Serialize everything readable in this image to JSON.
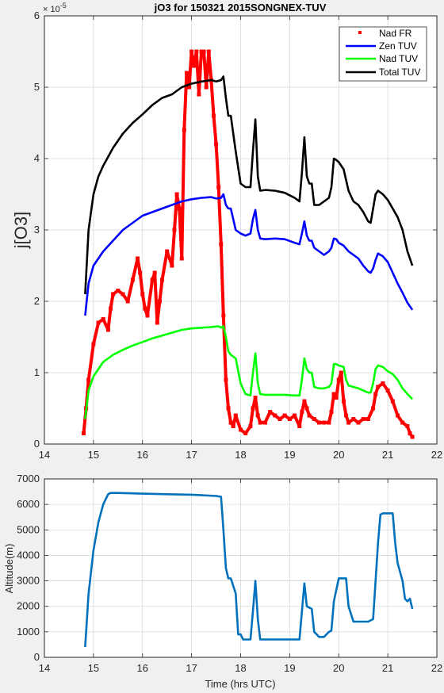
{
  "chart_data": [
    {
      "type": "line",
      "title": "jO3 for 150321 2015SONGNEX-TUV",
      "xlabel": "",
      "ylabel": "j[O3]",
      "y_exponent_label": "× 10",
      "y_exponent_power": "-5",
      "xlim": [
        14,
        22
      ],
      "ylim": [
        0,
        6
      ],
      "xticks": [
        "14",
        "15",
        "16",
        "17",
        "18",
        "19",
        "20",
        "21",
        "22"
      ],
      "yticks": [
        "0",
        "1",
        "2",
        "3",
        "4",
        "5",
        "6"
      ],
      "grid": true,
      "legend_position": "top-right",
      "series": [
        {
          "name": "Nad FR",
          "style": "markers",
          "color": "#ff0000",
          "x": [
            14.8,
            14.85,
            14.9,
            15.0,
            15.1,
            15.2,
            15.3,
            15.35,
            15.4,
            15.5,
            15.6,
            15.7,
            15.8,
            15.9,
            15.95,
            16.0,
            16.05,
            16.1,
            16.2,
            16.25,
            16.3,
            16.35,
            16.4,
            16.5,
            16.6,
            16.65,
            16.7,
            16.75,
            16.8,
            16.85,
            16.9,
            16.95,
            17.0,
            17.05,
            17.1,
            17.15,
            17.2,
            17.25,
            17.3,
            17.35,
            17.4,
            17.45,
            17.5,
            17.55,
            17.6,
            17.65,
            17.7,
            17.75,
            17.8,
            17.85,
            17.9,
            18.0,
            18.1,
            18.2,
            18.25,
            18.3,
            18.35,
            18.4,
            18.5,
            18.6,
            18.7,
            18.8,
            18.9,
            19.0,
            19.1,
            19.2,
            19.25,
            19.3,
            19.35,
            19.4,
            19.5,
            19.6,
            19.7,
            19.8,
            19.85,
            19.9,
            19.95,
            20.0,
            20.05,
            20.1,
            20.15,
            20.2,
            20.3,
            20.4,
            20.5,
            20.6,
            20.7,
            20.75,
            20.8,
            20.9,
            21.0,
            21.1,
            21.2,
            21.3,
            21.4,
            21.45,
            21.5
          ],
          "y": [
            0.15,
            0.5,
            0.9,
            1.4,
            1.7,
            1.75,
            1.6,
            1.9,
            2.1,
            2.15,
            2.1,
            2.0,
            2.3,
            2.6,
            2.4,
            2.1,
            1.9,
            1.8,
            2.3,
            2.4,
            1.7,
            2.0,
            2.3,
            2.7,
            2.5,
            3.0,
            3.5,
            3.3,
            2.6,
            4.4,
            5.2,
            5.0,
            5.5,
            5.3,
            5.5,
            4.9,
            5.5,
            5.5,
            5.0,
            5.5,
            5.1,
            4.6,
            4.2,
            3.6,
            2.8,
            1.8,
            0.9,
            0.5,
            0.3,
            0.25,
            0.4,
            0.2,
            0.15,
            0.25,
            0.5,
            0.65,
            0.4,
            0.3,
            0.3,
            0.45,
            0.4,
            0.35,
            0.4,
            0.35,
            0.4,
            0.25,
            0.45,
            0.6,
            0.5,
            0.4,
            0.35,
            0.3,
            0.3,
            0.3,
            0.45,
            0.7,
            0.65,
            0.9,
            1.0,
            0.6,
            0.4,
            0.3,
            0.35,
            0.3,
            0.35,
            0.35,
            0.5,
            0.7,
            0.8,
            0.85,
            0.75,
            0.6,
            0.4,
            0.3,
            0.25,
            0.15,
            0.1
          ]
        },
        {
          "name": "Zen TUV",
          "style": "line",
          "color": "#0000ff",
          "x": [
            14.83,
            14.9,
            15.0,
            15.1,
            15.2,
            15.4,
            15.6,
            15.8,
            16.0,
            16.2,
            16.4,
            16.6,
            16.8,
            17.0,
            17.2,
            17.4,
            17.5,
            17.6,
            17.65,
            17.7,
            17.75,
            17.8,
            17.9,
            18.0,
            18.1,
            18.2,
            18.25,
            18.3,
            18.35,
            18.4,
            18.5,
            18.7,
            18.9,
            19.1,
            19.2,
            19.25,
            19.3,
            19.35,
            19.4,
            19.45,
            19.5,
            19.6,
            19.7,
            19.8,
            19.85,
            19.9,
            19.95,
            20.0,
            20.1,
            20.2,
            20.3,
            20.4,
            20.5,
            20.6,
            20.65,
            20.7,
            20.75,
            20.8,
            20.9,
            21.0,
            21.1,
            21.2,
            21.3,
            21.4,
            21.5
          ],
          "y": [
            1.8,
            2.25,
            2.5,
            2.6,
            2.7,
            2.85,
            3.0,
            3.1,
            3.2,
            3.25,
            3.3,
            3.35,
            3.4,
            3.43,
            3.45,
            3.46,
            3.44,
            3.45,
            3.5,
            3.35,
            3.3,
            3.3,
            3.0,
            2.95,
            2.92,
            2.95,
            3.15,
            3.28,
            3.0,
            2.88,
            2.87,
            2.88,
            2.87,
            2.82,
            2.8,
            2.95,
            3.12,
            2.92,
            2.85,
            2.85,
            2.75,
            2.7,
            2.65,
            2.7,
            2.75,
            2.88,
            2.87,
            2.82,
            2.78,
            2.7,
            2.65,
            2.6,
            2.5,
            2.42,
            2.4,
            2.46,
            2.58,
            2.67,
            2.63,
            2.55,
            2.4,
            2.25,
            2.12,
            1.98,
            1.88
          ]
        },
        {
          "name": "Nad TUV",
          "style": "line",
          "color": "#00ff00",
          "x": [
            14.83,
            14.9,
            15.0,
            15.1,
            15.2,
            15.4,
            15.6,
            15.8,
            16.0,
            16.2,
            16.4,
            16.6,
            16.8,
            17.0,
            17.2,
            17.4,
            17.55,
            17.6,
            17.65,
            17.7,
            17.75,
            17.8,
            17.9,
            18.0,
            18.1,
            18.2,
            18.25,
            18.3,
            18.35,
            18.4,
            18.5,
            18.7,
            18.9,
            19.1,
            19.2,
            19.25,
            19.3,
            19.35,
            19.4,
            19.45,
            19.5,
            19.6,
            19.7,
            19.8,
            19.85,
            19.9,
            19.95,
            20.0,
            20.1,
            20.15,
            20.2,
            20.3,
            20.4,
            20.5,
            20.6,
            20.65,
            20.7,
            20.75,
            20.8,
            20.9,
            21.0,
            21.1,
            21.2,
            21.3,
            21.4,
            21.5
          ],
          "y": [
            0.35,
            0.75,
            0.95,
            1.05,
            1.15,
            1.25,
            1.32,
            1.38,
            1.43,
            1.48,
            1.52,
            1.56,
            1.6,
            1.62,
            1.63,
            1.64,
            1.65,
            1.63,
            1.65,
            1.5,
            1.3,
            1.25,
            1.2,
            0.85,
            0.7,
            0.68,
            1.0,
            1.27,
            0.85,
            0.7,
            0.69,
            0.69,
            0.69,
            0.68,
            0.68,
            0.9,
            1.2,
            1.05,
            1.0,
            1.0,
            0.8,
            0.78,
            0.78,
            0.8,
            0.85,
            1.12,
            1.12,
            1.1,
            1.08,
            0.9,
            0.82,
            0.8,
            0.78,
            0.75,
            0.72,
            0.72,
            0.85,
            1.05,
            1.1,
            1.08,
            1.02,
            0.98,
            0.9,
            0.78,
            0.7,
            0.63
          ]
        },
        {
          "name": "Total TUV",
          "style": "line",
          "color": "#000000",
          "x": [
            14.83,
            14.9,
            15.0,
            15.1,
            15.2,
            15.4,
            15.6,
            15.8,
            16.0,
            16.2,
            16.4,
            16.6,
            16.8,
            17.0,
            17.2,
            17.4,
            17.5,
            17.6,
            17.65,
            17.7,
            17.75,
            17.8,
            17.9,
            18.0,
            18.1,
            18.2,
            18.25,
            18.3,
            18.35,
            18.4,
            18.5,
            18.7,
            18.9,
            19.1,
            19.2,
            19.25,
            19.3,
            19.35,
            19.4,
            19.45,
            19.5,
            19.6,
            19.7,
            19.8,
            19.85,
            19.9,
            19.95,
            20.0,
            20.1,
            20.2,
            20.3,
            20.4,
            20.5,
            20.6,
            20.65,
            20.7,
            20.75,
            20.8,
            20.9,
            21.0,
            21.1,
            21.2,
            21.3,
            21.4,
            21.5
          ],
          "y": [
            2.1,
            3.0,
            3.5,
            3.75,
            3.9,
            4.15,
            4.35,
            4.5,
            4.62,
            4.75,
            4.85,
            4.9,
            5.0,
            5.05,
            5.08,
            5.1,
            5.08,
            5.1,
            5.15,
            4.85,
            4.6,
            4.6,
            4.1,
            3.65,
            3.6,
            3.6,
            4.1,
            4.55,
            3.75,
            3.55,
            3.56,
            3.55,
            3.52,
            3.45,
            3.4,
            3.8,
            4.3,
            3.75,
            3.65,
            3.65,
            3.35,
            3.35,
            3.4,
            3.45,
            3.6,
            4.0,
            3.98,
            3.95,
            3.85,
            3.55,
            3.4,
            3.35,
            3.25,
            3.12,
            3.1,
            3.3,
            3.5,
            3.55,
            3.5,
            3.42,
            3.3,
            3.18,
            3.0,
            2.7,
            2.5
          ]
        }
      ]
    },
    {
      "type": "line",
      "title": "",
      "xlabel": "Time (hrs UTC)",
      "ylabel": "Altitude(m)",
      "xlim": [
        14,
        22
      ],
      "ylim": [
        0,
        7000
      ],
      "xticks": [
        "14",
        "15",
        "16",
        "17",
        "18",
        "19",
        "20",
        "21",
        "22"
      ],
      "yticks": [
        "0",
        "1000",
        "2000",
        "3000",
        "4000",
        "5000",
        "6000",
        "7000"
      ],
      "grid": true,
      "series": [
        {
          "style": "line",
          "color": "#0072bd",
          "x": [
            14.83,
            14.9,
            15.0,
            15.1,
            15.2,
            15.3,
            15.35,
            15.5,
            16.0,
            16.5,
            17.0,
            17.5,
            17.6,
            17.65,
            17.7,
            17.75,
            17.8,
            17.9,
            17.95,
            18.0,
            18.05,
            18.1,
            18.2,
            18.25,
            18.3,
            18.35,
            18.4,
            18.5,
            18.7,
            18.9,
            19.1,
            19.2,
            19.25,
            19.3,
            19.35,
            19.4,
            19.45,
            19.5,
            19.6,
            19.7,
            19.8,
            19.85,
            19.9,
            20.0,
            20.1,
            20.15,
            20.2,
            20.3,
            20.5,
            20.6,
            20.7,
            20.8,
            20.85,
            20.9,
            21.0,
            21.1,
            21.15,
            21.2,
            21.3,
            21.35,
            21.4,
            21.45,
            21.5
          ],
          "y": [
            400,
            2500,
            4200,
            5300,
            6000,
            6400,
            6450,
            6450,
            6420,
            6400,
            6380,
            6330,
            6300,
            5000,
            3500,
            3100,
            3100,
            2500,
            900,
            900,
            700,
            700,
            700,
            1800,
            3000,
            1500,
            700,
            700,
            700,
            700,
            700,
            700,
            1800,
            2900,
            2000,
            1950,
            1900,
            1000,
            800,
            800,
            1000,
            1050,
            2200,
            3100,
            3100,
            3100,
            2000,
            1400,
            1400,
            1400,
            1500,
            4500,
            5600,
            5650,
            5650,
            5650,
            4500,
            3700,
            3000,
            2300,
            2200,
            2300,
            1900
          ]
        }
      ]
    }
  ]
}
